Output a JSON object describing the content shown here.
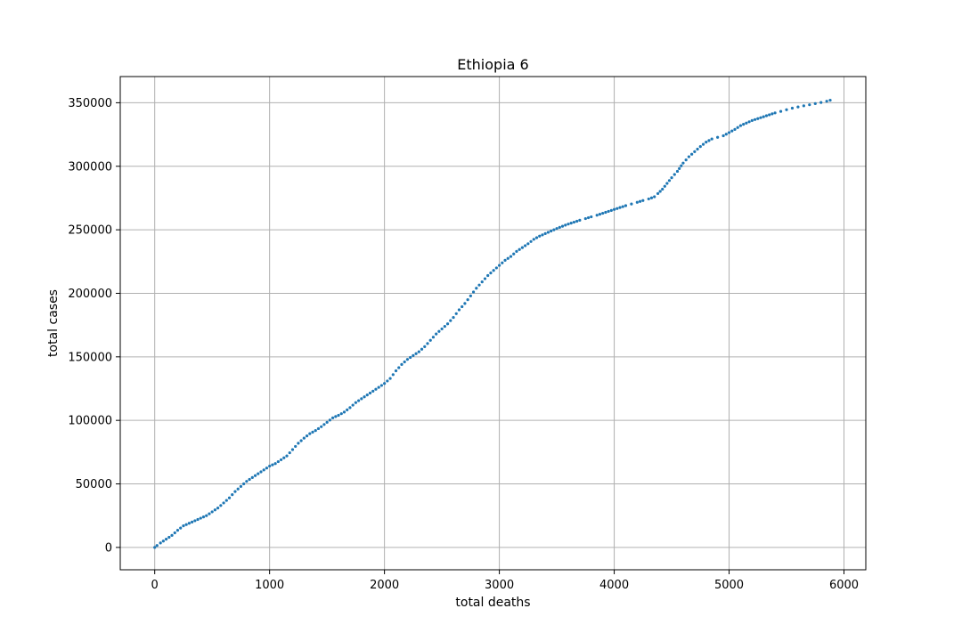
{
  "chart_data": {
    "type": "scatter",
    "title": "Ethiopia 6",
    "xlabel": "total deaths",
    "ylabel": "total cases",
    "xlim": [
      -300,
      6190
    ],
    "ylim": [
      -17600,
      370600
    ],
    "xticks": [
      0,
      1000,
      2000,
      3000,
      4000,
      5000,
      6000
    ],
    "yticks": [
      0,
      50000,
      100000,
      150000,
      200000,
      250000,
      300000,
      350000
    ],
    "grid": true,
    "marker_color": "#1f77b4",
    "series": [
      {
        "values": [
          [
            0,
            0
          ],
          [
            20,
            1500
          ],
          [
            50,
            3500
          ],
          [
            100,
            6500
          ],
          [
            150,
            9500
          ],
          [
            200,
            13500
          ],
          [
            250,
            17000
          ],
          [
            300,
            19000
          ],
          [
            350,
            21000
          ],
          [
            400,
            23000
          ],
          [
            450,
            25000
          ],
          [
            500,
            28000
          ],
          [
            550,
            31000
          ],
          [
            600,
            35000
          ],
          [
            650,
            39000
          ],
          [
            700,
            44000
          ],
          [
            750,
            48000
          ],
          [
            800,
            52000
          ],
          [
            850,
            55000
          ],
          [
            900,
            58000
          ],
          [
            950,
            61000
          ],
          [
            1000,
            64000
          ],
          [
            1050,
            66000
          ],
          [
            1100,
            69000
          ],
          [
            1150,
            72000
          ],
          [
            1200,
            77000
          ],
          [
            1250,
            82000
          ],
          [
            1300,
            86000
          ],
          [
            1350,
            89500
          ],
          [
            1400,
            92000
          ],
          [
            1450,
            95000
          ],
          [
            1500,
            98500
          ],
          [
            1550,
            102000
          ],
          [
            1600,
            104000
          ],
          [
            1650,
            106500
          ],
          [
            1700,
            110000
          ],
          [
            1750,
            114000
          ],
          [
            1800,
            117000
          ],
          [
            1850,
            120000
          ],
          [
            1900,
            123000
          ],
          [
            1950,
            126000
          ],
          [
            2000,
            129000
          ],
          [
            2050,
            133000
          ],
          [
            2100,
            139000
          ],
          [
            2150,
            144000
          ],
          [
            2200,
            148000
          ],
          [
            2250,
            151000
          ],
          [
            2300,
            154000
          ],
          [
            2350,
            158000
          ],
          [
            2400,
            163000
          ],
          [
            2450,
            168000
          ],
          [
            2500,
            172000
          ],
          [
            2550,
            176000
          ],
          [
            2600,
            181000
          ],
          [
            2650,
            187000
          ],
          [
            2700,
            192000
          ],
          [
            2750,
            198000
          ],
          [
            2800,
            204000
          ],
          [
            2850,
            209000
          ],
          [
            2900,
            214000
          ],
          [
            2950,
            218000
          ],
          [
            3000,
            222000
          ],
          [
            3050,
            226000
          ],
          [
            3100,
            229000
          ],
          [
            3150,
            233000
          ],
          [
            3200,
            236000
          ],
          [
            3250,
            239000
          ],
          [
            3300,
            242500
          ],
          [
            3350,
            245000
          ],
          [
            3400,
            247000
          ],
          [
            3450,
            249000
          ],
          [
            3500,
            251000
          ],
          [
            3550,
            252800
          ],
          [
            3600,
            254500
          ],
          [
            3650,
            256000
          ],
          [
            3700,
            257500
          ],
          [
            3750,
            258800
          ],
          [
            3800,
            260200
          ],
          [
            3850,
            261500
          ],
          [
            3900,
            263000
          ],
          [
            3950,
            264500
          ],
          [
            4000,
            266000
          ],
          [
            4050,
            267500
          ],
          [
            4100,
            269000
          ],
          [
            4150,
            270300
          ],
          [
            4200,
            271600
          ],
          [
            4250,
            273000
          ],
          [
            4300,
            274300
          ],
          [
            4350,
            276000
          ],
          [
            4380,
            278500
          ],
          [
            4420,
            282000
          ],
          [
            4460,
            286500
          ],
          [
            4500,
            291000
          ],
          [
            4550,
            296000
          ],
          [
            4600,
            302500
          ],
          [
            4650,
            307500
          ],
          [
            4700,
            311500
          ],
          [
            4750,
            315500
          ],
          [
            4800,
            319000
          ],
          [
            4850,
            321500
          ],
          [
            4900,
            322800
          ],
          [
            4950,
            324000
          ],
          [
            5000,
            326500
          ],
          [
            5050,
            329000
          ],
          [
            5100,
            332000
          ],
          [
            5150,
            334000
          ],
          [
            5200,
            336000
          ],
          [
            5250,
            337500
          ],
          [
            5300,
            339000
          ],
          [
            5350,
            340500
          ],
          [
            5400,
            342000
          ],
          [
            5450,
            343200
          ],
          [
            5500,
            344500
          ],
          [
            5550,
            345700
          ],
          [
            5600,
            346700
          ],
          [
            5650,
            347600
          ],
          [
            5700,
            348400
          ],
          [
            5750,
            349300
          ],
          [
            5800,
            350200
          ],
          [
            5850,
            351200
          ],
          [
            5880,
            352000
          ]
        ]
      }
    ]
  }
}
